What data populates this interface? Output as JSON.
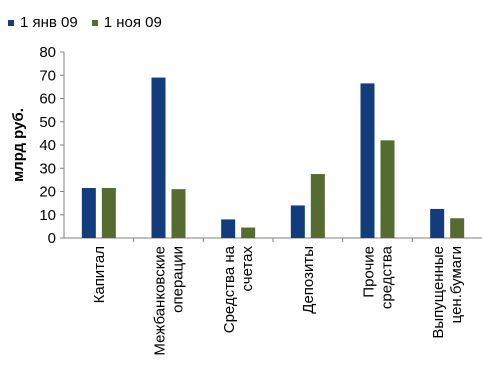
{
  "chart_data": {
    "type": "bar",
    "title": "",
    "xlabel": "",
    "ylabel": "млрд руб.",
    "ylim": [
      0,
      80
    ],
    "yticks": [
      0,
      10,
      20,
      30,
      40,
      50,
      60,
      70,
      80
    ],
    "grid": false,
    "legend_position": "top-left",
    "categories": [
      [
        "Капитал"
      ],
      [
        "Межбанковские",
        "операции"
      ],
      [
        "Средства на",
        "счетах"
      ],
      [
        "Депозиты"
      ],
      [
        "Прочие",
        "средства"
      ],
      [
        "Выпущенные",
        "цен.бумаги"
      ]
    ],
    "series": [
      {
        "name": "1 янв 09",
        "color": "#123c7c",
        "values": [
          21.5,
          69,
          8,
          14,
          66.5,
          12.5
        ]
      },
      {
        "name": "1 ноя 09",
        "color": "#556b2f",
        "values": [
          21.5,
          21,
          4.5,
          27.5,
          42,
          8.5
        ]
      }
    ]
  }
}
